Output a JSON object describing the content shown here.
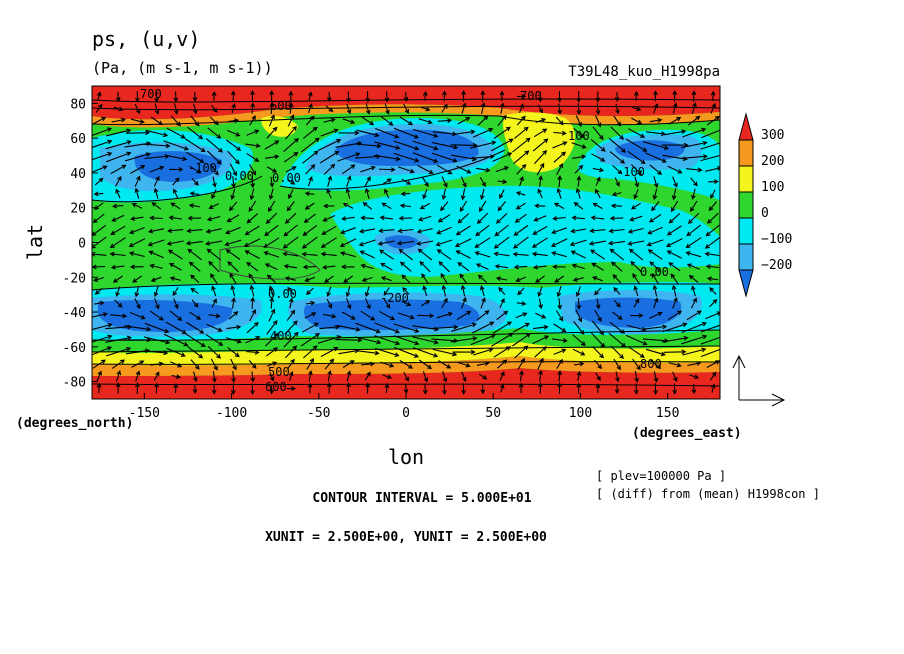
{
  "chart_data": {
    "type": "heatmap",
    "title": "ps, (u,v)",
    "subtitle": "(Pa, (m s-1, m s-1))",
    "experiment": "T39L48_kuo_H1998pa",
    "xlabel": "lon",
    "ylabel": "lat",
    "x_unit_label": "(degrees_east)",
    "y_unit_label": "(degrees_north)",
    "xlim": [
      -180,
      180
    ],
    "ylim": [
      -90,
      90
    ],
    "x_ticks": [
      -150,
      -100,
      -50,
      0,
      50,
      100,
      150
    ],
    "y_ticks": [
      80,
      60,
      40,
      20,
      0,
      -20,
      -40,
      -60,
      -80
    ],
    "colorbar": {
      "labels": [
        "300",
        "200",
        "100",
        "0",
        "−100",
        "−200"
      ],
      "levels": [
        -300,
        -200,
        -100,
        0,
        100,
        200,
        300
      ],
      "colors": [
        "#1a6fe0",
        "#3fb5f0",
        "#00e8f0",
        "#2ed62e",
        "#f5f51e",
        "#f59a1e",
        "#e8281e"
      ],
      "extend": "both"
    },
    "contour_labels": [
      "700",
      "600",
      "500",
      "400",
      "100",
      "0.00",
      "-100",
      "-200",
      "800"
    ],
    "notes": {
      "plev": "[ plev=100000 Pa ]",
      "diff": "[ (diff) from (mean) H1998con ]",
      "contour_interval": "CONTOUR INTERVAL = 5.000E+01",
      "units": "XUNIT = 2.500E+00, YUNIT = 2.500E+00"
    },
    "grid": false,
    "vectors": true
  }
}
